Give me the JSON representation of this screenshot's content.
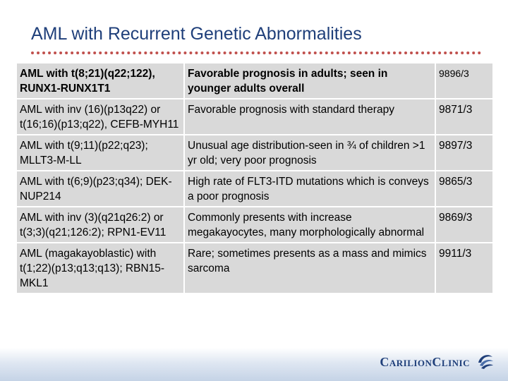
{
  "slide": {
    "title": "AML with Recurrent Genetic Abnormalities"
  },
  "rows": [
    {
      "abnormality": "AML with t(8;21)(q22;122), RUNX1-RUNX1T1",
      "description": "Favorable prognosis in adults; seen in younger adults overall",
      "code": "9896/3"
    },
    {
      "abnormality": "AML with inv (16)(p13q22) or t(16;16)(p13;q22), CEFB-MYH11",
      "description": "Favorable prognosis with standard therapy",
      "code": "9871/3"
    },
    {
      "abnormality": "AML with t(9;11)(p22;q23); MLLT3-M-LL",
      "description": "Unusual age distribution-seen in ¾ of children >1 yr old; very poor prognosis",
      "code": "9897/3"
    },
    {
      "abnormality": "AML with t(6;9)(p23;q34); DEK-NUP214",
      "description": "High rate of FLT3-ITD mutations which is conveys a poor prognosis",
      "code": "9865/3"
    },
    {
      "abnormality": "AML with inv (3)(q21q26:2) or t(3;3)(q21;126:2); RPN1-EV11",
      "description": "Commonly presents with increase megakayocytes, many morphologically abnormal",
      "code": "9869/3"
    },
    {
      "abnormality": "AML (magakayoblastic) with t(1;22)(p13;q13;q13); RBN15-MKL1",
      "description": "Rare; sometimes presents as a mass and mimics sarcoma",
      "code": "9911/3"
    }
  ],
  "footer": {
    "logo_text": "CarilionClinic",
    "logo_icon": "carilion-swirl-icon",
    "colors": {
      "title": "#1f3f7a",
      "rule": "#c0504d",
      "cell": "#d9d9d9"
    }
  }
}
